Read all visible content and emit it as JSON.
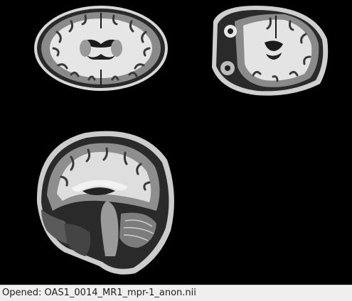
{
  "views": {
    "axial": {
      "view_name": "axial"
    },
    "coronal": {
      "view_name": "coronal"
    },
    "sagittal": {
      "view_name": "sagittal"
    }
  },
  "status": {
    "text": "Opened: OAS1_0014_MR1_mpr-1_anon.nii"
  },
  "colors": {
    "background": "#000000",
    "status_bar_bg": "#efefef",
    "status_text": "#1e1e1e"
  }
}
